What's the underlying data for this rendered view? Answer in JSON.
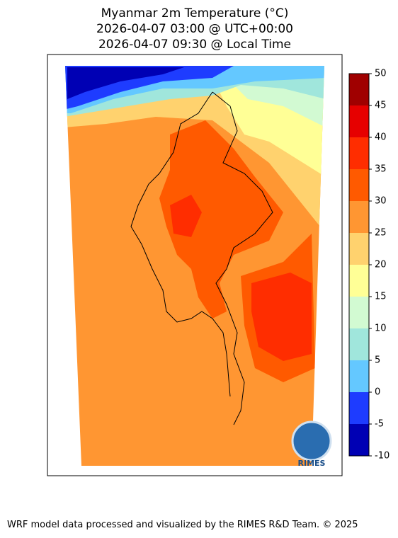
{
  "header": {
    "title_lines": [
      "Myanmar 2m Temperature (°C)",
      "2026-04-07 03:00 @ UTC+00:00",
      "2026-04-07 09:30 @ Local Time"
    ]
  },
  "colorbar": {
    "levels": [
      -10,
      -5,
      0,
      5,
      10,
      15,
      20,
      25,
      30,
      35,
      40,
      45,
      50
    ],
    "colors": [
      "#0000b4",
      "#1e3cff",
      "#64c8ff",
      "#a0e6dc",
      "#d2fad2",
      "#ffff96",
      "#ffd26e",
      "#ff9632",
      "#ff5a00",
      "#ff2d00",
      "#e60000",
      "#a00000"
    ]
  },
  "logo": {
    "text": "RIMES"
  },
  "footer": {
    "text": "WRF model data processed and visualized by the RIMES R&D Team. © 2025"
  }
}
